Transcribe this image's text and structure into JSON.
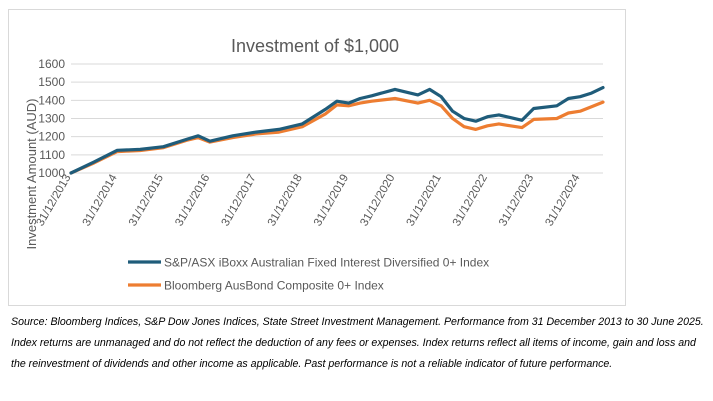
{
  "chart_data": {
    "type": "line",
    "title": "Investment of $1,000",
    "ylabel": "Investment Amount (AUD)",
    "xlabel": "",
    "ylim": [
      1000,
      1600
    ],
    "yticks": [
      1000,
      1100,
      1200,
      1300,
      1400,
      1500,
      1600
    ],
    "ytick_labels": [
      "1000",
      "1100",
      "1200",
      "1300",
      "1400",
      "1500",
      "1600"
    ],
    "xlim": [
      "2013-12-31",
      "2025-06-30"
    ],
    "xtick_labels": [
      "31/12/2013",
      "31/12/2014",
      "31/12/2015",
      "31/12/2016",
      "31/12/2017",
      "31/12/2018",
      "31/12/2019",
      "31/12/2020",
      "31/12/2021",
      "31/12/2022",
      "31/12/2023",
      "31/12/2024"
    ],
    "x": [
      "2013-12-31",
      "2014-06-30",
      "2014-12-31",
      "2015-06-30",
      "2015-12-31",
      "2016-06-30",
      "2016-09-30",
      "2016-12-31",
      "2017-06-30",
      "2017-12-31",
      "2018-06-30",
      "2018-12-31",
      "2019-06-30",
      "2019-09-30",
      "2019-12-31",
      "2020-03-31",
      "2020-06-30",
      "2020-12-31",
      "2021-06-30",
      "2021-09-30",
      "2021-12-31",
      "2022-03-31",
      "2022-06-30",
      "2022-09-30",
      "2022-12-31",
      "2023-03-31",
      "2023-06-30",
      "2023-09-30",
      "2023-12-31",
      "2024-06-30",
      "2024-09-30",
      "2024-12-31",
      "2025-03-31",
      "2025-06-30"
    ],
    "series": [
      {
        "name": "S&P/ASX iBoxx Australian Fixed Interest Diversified 0+ Index",
        "color": "#1f5c7a",
        "values": [
          1000,
          1060,
          1125,
          1130,
          1145,
          1185,
          1205,
          1175,
          1205,
          1225,
          1240,
          1270,
          1350,
          1395,
          1385,
          1410,
          1425,
          1460,
          1430,
          1460,
          1420,
          1340,
          1300,
          1285,
          1310,
          1320,
          1305,
          1290,
          1355,
          1370,
          1410,
          1420,
          1440,
          1470
        ]
      },
      {
        "name": "Bloomberg AusBond Composite 0+ Index",
        "color": "#ed7d31",
        "values": [
          1000,
          1055,
          1118,
          1124,
          1140,
          1180,
          1195,
          1170,
          1195,
          1215,
          1225,
          1255,
          1325,
          1375,
          1370,
          1385,
          1395,
          1410,
          1385,
          1400,
          1370,
          1300,
          1255,
          1240,
          1260,
          1270,
          1260,
          1250,
          1295,
          1300,
          1330,
          1340,
          1365,
          1390
        ]
      }
    ],
    "grid": true,
    "legend_position": "bottom"
  },
  "source_note": "Source: Bloomberg Indices, S&P Dow Jones Indices, State Street Investment Management. Performance from 31 December 2013 to 30 June 2025. Index returns are unmanaged and do not reflect the deduction of any fees or expenses. Index returns reflect all items of income, gain and loss and the reinvestment of dividends and other income as applicable. Past performance is not a reliable indicator of future performance."
}
